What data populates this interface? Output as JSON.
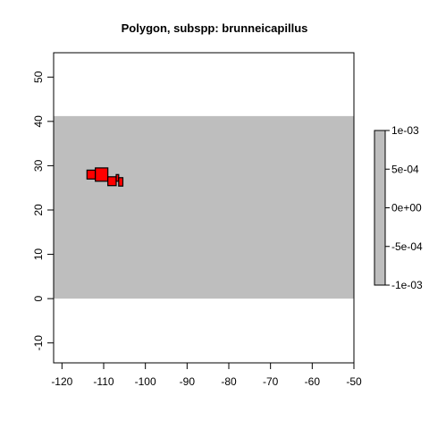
{
  "title": "Polygon, subspp: brunneicapillus",
  "colors": {
    "background": "#bebebe",
    "polygon_fill": "#ff0000",
    "polygon_border": "#000000",
    "axes": "#000000"
  },
  "chart_data": {
    "type": "heatmap",
    "title": "Polygon, subspp: brunneicapillus",
    "xlabel": "",
    "ylabel": "",
    "xlim": [
      -122,
      -50
    ],
    "ylim": [
      -14.5,
      55.5
    ],
    "x_ticks": [
      -120,
      -110,
      -100,
      -90,
      -80,
      -70,
      -60,
      -50
    ],
    "x_tick_labels": [
      "-120",
      "-110",
      "-100",
      "-90",
      "-80",
      "-70",
      "-60",
      "-50"
    ],
    "y_ticks": [
      -10,
      0,
      10,
      20,
      30,
      40,
      50
    ],
    "y_tick_labels": [
      "-10",
      "0",
      "10",
      "20",
      "30",
      "40",
      "50"
    ],
    "raster_extent": {
      "xmin": -122,
      "xmax": -50,
      "ymin": 0,
      "ymax": 41.2
    },
    "raster_value": 0,
    "polygon_cells": [
      {
        "x0": -114,
        "x1": -112,
        "y0": 27,
        "y1": 29
      },
      {
        "x0": -112,
        "x1": -109,
        "y0": 26.5,
        "y1": 29.5
      },
      {
        "x0": -109,
        "x1": -107,
        "y0": 25.5,
        "y1": 27.5
      },
      {
        "x0": -107,
        "x1": -106.4,
        "y0": 26.5,
        "y1": 28
      },
      {
        "x0": -106.4,
        "x1": -105.4,
        "y0": 25.4,
        "y1": 27.3
      }
    ],
    "legend": {
      "position": "right",
      "range": [
        -0.001,
        0.001
      ],
      "ticks": [
        -0.001,
        -0.0005,
        0,
        0.0005,
        0.001
      ],
      "tick_labels": [
        "-1e-03",
        "-5e-04",
        "0e+00",
        "5e-04",
        "1e-03"
      ]
    },
    "grid": false
  }
}
